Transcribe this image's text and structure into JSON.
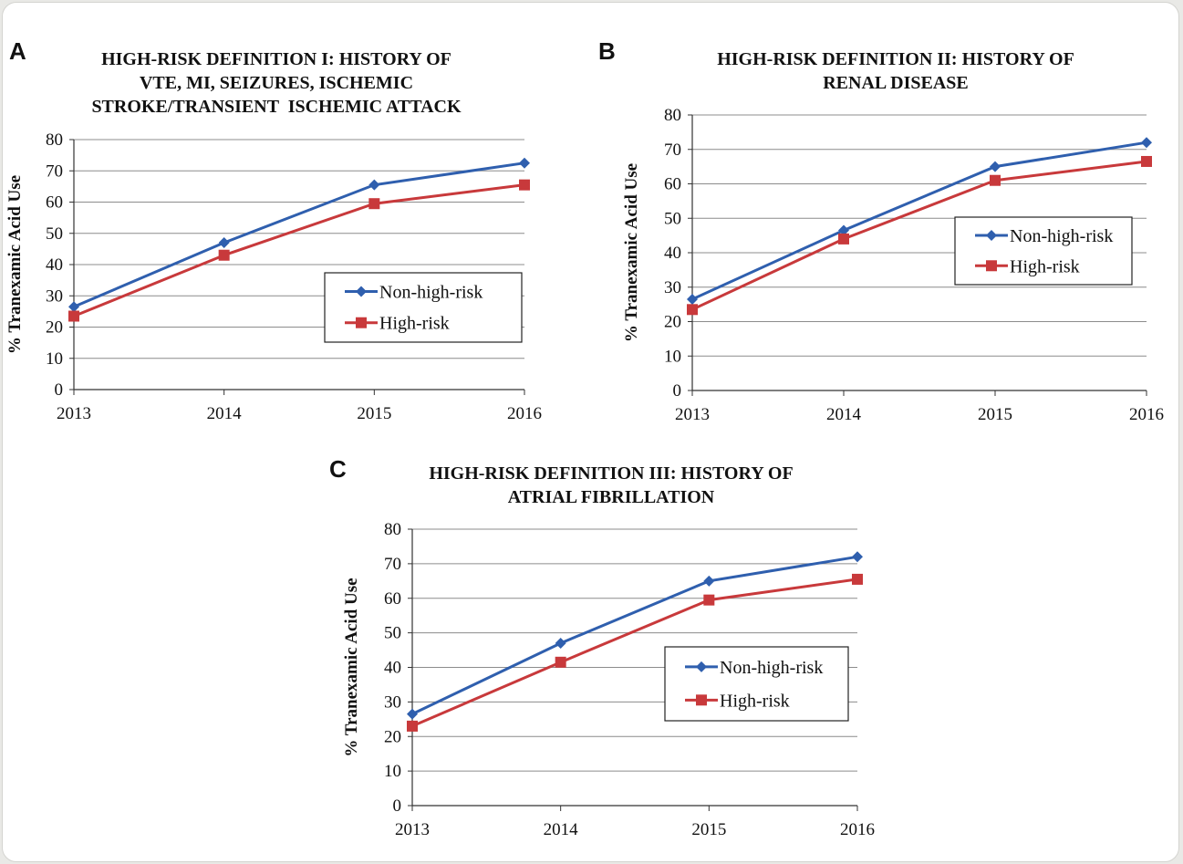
{
  "colors": {
    "non_high_risk": "#2f5fae",
    "high_risk": "#c8393b",
    "grid": "#8c8c8c",
    "axis": "#333333"
  },
  "chart_data": [
    {
      "panel": "A",
      "type": "line",
      "title_lines": [
        "HIGH-RISK DEFINITION I: HISTORY OF",
        "VTE, MI, SEIZURES, ISCHEMIC",
        "STROKE/TRANSIENT  ISCHEMIC ATTACK"
      ],
      "ylabel": "% Tranexamic Acid Use",
      "x": [
        "2013",
        "2014",
        "2015",
        "2016"
      ],
      "ylim": [
        0,
        80
      ],
      "yticks": [
        0,
        10,
        20,
        30,
        40,
        50,
        60,
        70,
        80
      ],
      "grid": true,
      "legend_position": "center-right",
      "series": [
        {
          "name": "Non-high-risk",
          "marker": "diamond",
          "values": [
            26.5,
            47,
            65.5,
            72.5
          ]
        },
        {
          "name": "High-risk",
          "marker": "square",
          "values": [
            23.5,
            43,
            59.5,
            65.5
          ]
        }
      ]
    },
    {
      "panel": "B",
      "type": "line",
      "title_lines": [
        "HIGH-RISK DEFINITION II: HISTORY OF",
        "RENAL DISEASE"
      ],
      "ylabel": "% Tranexamic Acid Use",
      "x": [
        "2013",
        "2014",
        "2015",
        "2016"
      ],
      "ylim": [
        0,
        80
      ],
      "yticks": [
        0,
        10,
        20,
        30,
        40,
        50,
        60,
        70,
        80
      ],
      "grid": true,
      "legend_position": "center-right",
      "series": [
        {
          "name": "Non-high-risk",
          "marker": "diamond",
          "values": [
            26.5,
            46.5,
            65,
            72
          ]
        },
        {
          "name": "High-risk",
          "marker": "square",
          "values": [
            23.5,
            44,
            61,
            66.5
          ]
        }
      ]
    },
    {
      "panel": "C",
      "type": "line",
      "title_lines": [
        "HIGH-RISK DEFINITION III: HISTORY OF",
        "ATRIAL FIBRILLATION"
      ],
      "ylabel": "% Tranexamic Acid Use",
      "x": [
        "2013",
        "2014",
        "2015",
        "2016"
      ],
      "ylim": [
        0,
        80
      ],
      "yticks": [
        0,
        10,
        20,
        30,
        40,
        50,
        60,
        70,
        80
      ],
      "grid": true,
      "legend_position": "bottom-right",
      "series": [
        {
          "name": "Non-high-risk",
          "marker": "diamond",
          "values": [
            26.5,
            47,
            65,
            72
          ]
        },
        {
          "name": "High-risk",
          "marker": "square",
          "values": [
            23,
            41.5,
            59.5,
            65.5
          ]
        }
      ]
    }
  ]
}
